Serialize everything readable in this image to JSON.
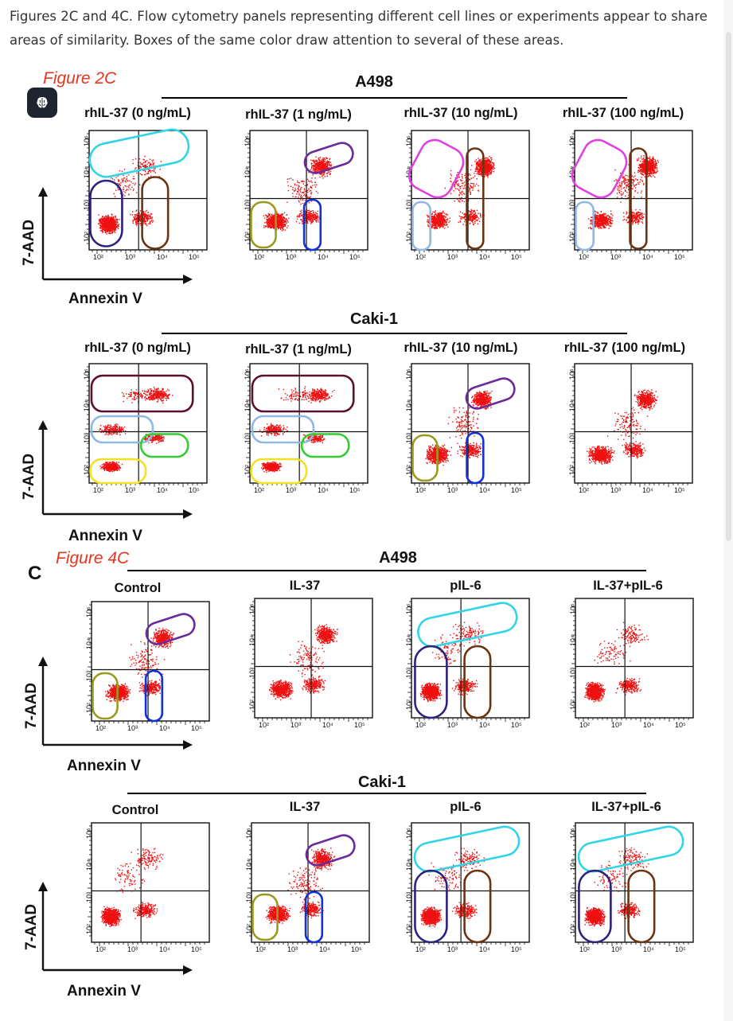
{
  "caption": "Figures 2C and 4C. Flow cytometry panels representing different cell lines or experiments appear to share areas of similarity. Boxes of the same color draw attention to several of these areas.",
  "icons": {
    "brain_button": "brain-icon"
  },
  "figure2c": {
    "label": "Figure 2C",
    "group1_title": "A498",
    "group2_title": "Caki-1",
    "titles_row1": [
      "rhIL-37 (0 ng/mL)",
      "rhIL-37 (1 ng/mL)",
      "rhIL-37 (10 ng/mL)",
      "rhIL-37 (100 ng/mL)"
    ],
    "titles_row2": [
      "rhIL-37 (0 ng/mL)",
      "rhIL-37 (1 ng/mL)",
      "rhIL-37 (10 ng/mL)",
      "rhIL-37 (100 ng/mL)"
    ]
  },
  "figure4c": {
    "label": "Figure 4C",
    "panel_letter": "C",
    "group1_title": "A498",
    "group2_title": "Caki-1",
    "titles_row1": [
      "Control",
      "IL-37",
      "pIL-6",
      "IL-37+pIL-6"
    ],
    "titles_row2": [
      "Control",
      "IL-37",
      "pIL-6",
      "IL-37+pIL-6"
    ]
  },
  "axes": {
    "x_label": "Annexin V",
    "y_label": "7-AAD",
    "x_ticks": [
      "10²",
      "10³",
      "10⁴",
      "10⁵"
    ],
    "y_ticks": [
      "10²",
      "10³",
      "10⁴",
      "10⁵"
    ]
  },
  "colors": {
    "dots": "#ee1111",
    "cyan": "#2fd4e6",
    "navy": "#2a2280",
    "brown": "#6b3310",
    "purple": "#6a2a9a",
    "olive": "#9a9a1e",
    "blue": "#1030d8",
    "magenta": "#e040e0",
    "lightblue": "#8fb8e6",
    "maroon": "#5a1030",
    "green": "#33cc33",
    "yellow": "#f2e022"
  }
}
